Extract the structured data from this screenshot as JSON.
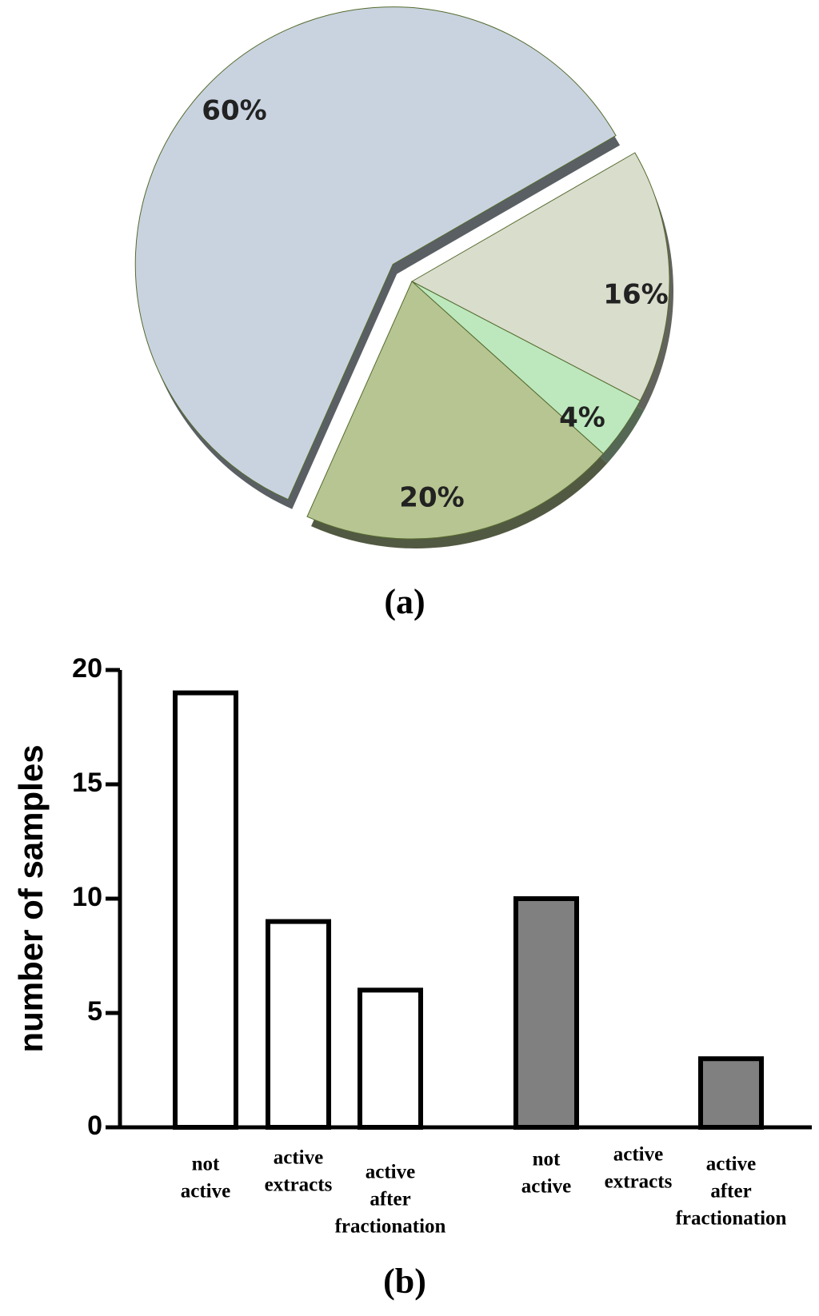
{
  "chart_data": [
    {
      "type": "pie",
      "values": [
        16,
        4,
        20,
        60
      ],
      "value_labels": [
        "16%",
        "4%",
        "20%",
        "60%"
      ],
      "colors": [
        "#d9ddcc",
        "#bde8bd",
        "#b7c592",
        "#c9d3df"
      ],
      "caption": "(a)"
    },
    {
      "type": "bar",
      "categories": [
        [
          "not",
          "active"
        ],
        [
          "active",
          "extracts"
        ],
        [
          "active",
          "after",
          "fractionation"
        ],
        [
          "not",
          "active"
        ],
        [
          "active",
          "extracts"
        ],
        [
          "active",
          "after",
          "fractionation"
        ]
      ],
      "values": [
        19,
        9,
        6,
        10,
        0,
        3
      ],
      "colors": [
        "#ffffff",
        "#ffffff",
        "#ffffff",
        "#808080",
        "#808080",
        "#808080"
      ],
      "ylabel": "number of samples",
      "ylim": [
        0,
        20
      ],
      "yticks": [
        0,
        5,
        10,
        15,
        20
      ],
      "caption": "(b)"
    }
  ]
}
